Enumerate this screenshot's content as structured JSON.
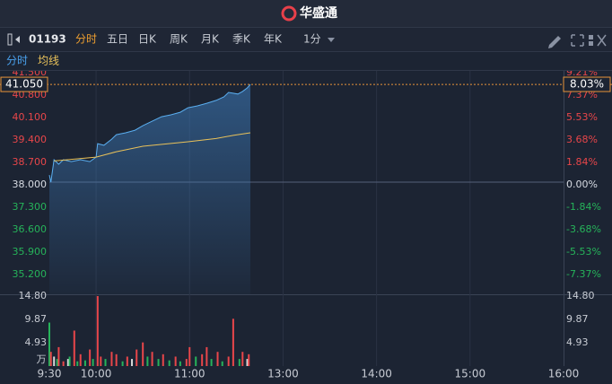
{
  "header": {
    "logo": "华盛通"
  },
  "toolbar": {
    "code": "01193",
    "tabs": [
      "分时",
      "五日",
      "日K",
      "周K",
      "月K",
      "季K",
      "年K"
    ],
    "interval": "1分"
  },
  "subbar": {
    "items": [
      "分时",
      "均线"
    ]
  },
  "chart_data": [
    {
      "type": "line",
      "xlim": [
        0,
        330
      ],
      "ylim": [
        34.5,
        41.5
      ],
      "yticks": [
        {
          "value": 41.5,
          "label": "41.500"
        },
        {
          "value": 40.8,
          "label": "40.800"
        },
        {
          "value": 40.1,
          "label": "40.100"
        },
        {
          "value": 39.4,
          "label": "39.400"
        },
        {
          "value": 38.7,
          "label": "38.700"
        },
        {
          "value": 38,
          "label": "38.000"
        },
        {
          "value": 37.3,
          "label": "37.300"
        },
        {
          "value": 36.6,
          "label": "36.600"
        },
        {
          "value": 35.9,
          "label": "35.900"
        },
        {
          "value": 35.2,
          "label": "35.200"
        }
      ],
      "y2lim": [
        -9.21,
        9.21
      ],
      "y2ticks": [
        {
          "value": 9.21,
          "label": "9.21%"
        },
        {
          "value": 7.37,
          "label": "7.37%"
        },
        {
          "value": 5.53,
          "label": "5.53%"
        },
        {
          "value": 3.68,
          "label": "3.68%"
        },
        {
          "value": 1.84,
          "label": "1.84%"
        },
        {
          "value": 0,
          "label": "0.00%"
        },
        {
          "value": -1.84,
          "label": "-1.84%"
        },
        {
          "value": -3.68,
          "label": "-3.68%"
        },
        {
          "value": -5.53,
          "label": "-5.53%"
        },
        {
          "value": -7.37,
          "label": "-7.37%"
        }
      ],
      "last_price": {
        "value": 41.05,
        "label": "41.050"
      },
      "last_change": {
        "value": 8.03,
        "label": "8.03%"
      },
      "series": [
        {
          "color": "#5aaef0",
          "x": [
            0,
            1,
            3,
            6,
            9,
            14,
            20,
            26,
            30,
            31,
            35,
            40,
            43,
            49,
            55,
            60,
            66,
            72,
            78,
            84,
            89,
            95,
            101,
            107,
            112,
            115,
            121,
            124,
            127,
            129
          ],
          "values": [
            38.22,
            38.0,
            38.7,
            38.56,
            38.7,
            38.64,
            38.7,
            38.64,
            38.78,
            39.2,
            39.15,
            39.34,
            39.48,
            39.54,
            39.62,
            39.76,
            39.9,
            40.04,
            40.1,
            40.18,
            40.32,
            40.38,
            40.46,
            40.55,
            40.66,
            40.8,
            40.75,
            40.83,
            40.94,
            41.05
          ]
        },
        {
          "color": "#e8c15a",
          "x": [
            3,
            30,
            43,
            60,
            89,
            107,
            118,
            129
          ],
          "values": [
            38.66,
            38.78,
            38.95,
            39.12,
            39.26,
            39.36,
            39.46,
            39.54
          ]
        }
      ]
    },
    {
      "type": "bar",
      "xlim": [
        0,
        330
      ],
      "xticks": [
        {
          "value": 0,
          "label": "9:30"
        },
        {
          "value": 30,
          "label": "10:00"
        },
        {
          "value": 90,
          "label": "11:00"
        },
        {
          "value": 150,
          "label": "13:00"
        },
        {
          "value": 210,
          "label": "14:00"
        },
        {
          "value": 270,
          "label": "15:00"
        },
        {
          "value": 330,
          "label": "16:00"
        }
      ],
      "ylim": [
        0,
        14.8
      ],
      "yticks": [
        {
          "value": 14.8,
          "label": "14.80"
        },
        {
          "value": 9.87,
          "label": "9.87"
        },
        {
          "value": 4.93,
          "label": "4.93"
        }
      ],
      "unit": "万",
      "x": [
        0,
        1,
        3,
        5,
        6,
        9,
        12,
        13,
        16,
        18,
        20,
        23,
        26,
        28,
        31,
        33,
        36,
        40,
        43,
        47,
        50,
        53,
        56,
        60,
        63,
        66,
        70,
        73,
        77,
        81,
        84,
        88,
        90,
        94,
        98,
        101,
        104,
        108,
        111,
        115,
        118,
        122,
        124,
        127,
        128
      ],
      "values": [
        9.2,
        3,
        2,
        1.5,
        4,
        1,
        1.5,
        2,
        7.5,
        1,
        2.5,
        1.2,
        3.5,
        1.5,
        14.8,
        2,
        1.5,
        3,
        2.5,
        1,
        2,
        1.5,
        3.5,
        5,
        2,
        3,
        1.5,
        2.5,
        1.2,
        2,
        1,
        1.5,
        4,
        2,
        2.5,
        4,
        1.5,
        3,
        1,
        2,
        10,
        1.5,
        3,
        1.5,
        2.5
      ],
      "colors": [
        "#26b35a",
        "#e8464a",
        "#d8d8d8",
        "#26b35a",
        "#e8464a",
        "#e8464a",
        "#d8d8d8",
        "#26b35a",
        "#e8464a",
        "#26b35a",
        "#e8464a",
        "#26b35a",
        "#e8464a",
        "#26b35a",
        "#e8464a",
        "#e8464a",
        "#26b35a",
        "#e8464a",
        "#e8464a",
        "#26b35a",
        "#e8464a",
        "#d8d8d8",
        "#e8464a",
        "#e8464a",
        "#26b35a",
        "#e8464a",
        "#26b35a",
        "#e8464a",
        "#26b35a",
        "#e8464a",
        "#26b35a",
        "#e8464a",
        "#e8464a",
        "#26b35a",
        "#e8464a",
        "#e8464a",
        "#26b35a",
        "#e8464a",
        "#26b35a",
        "#e8464a",
        "#e8464a",
        "#26b35a",
        "#e8464a",
        "#d8d8d8",
        "#e8464a"
      ]
    }
  ]
}
